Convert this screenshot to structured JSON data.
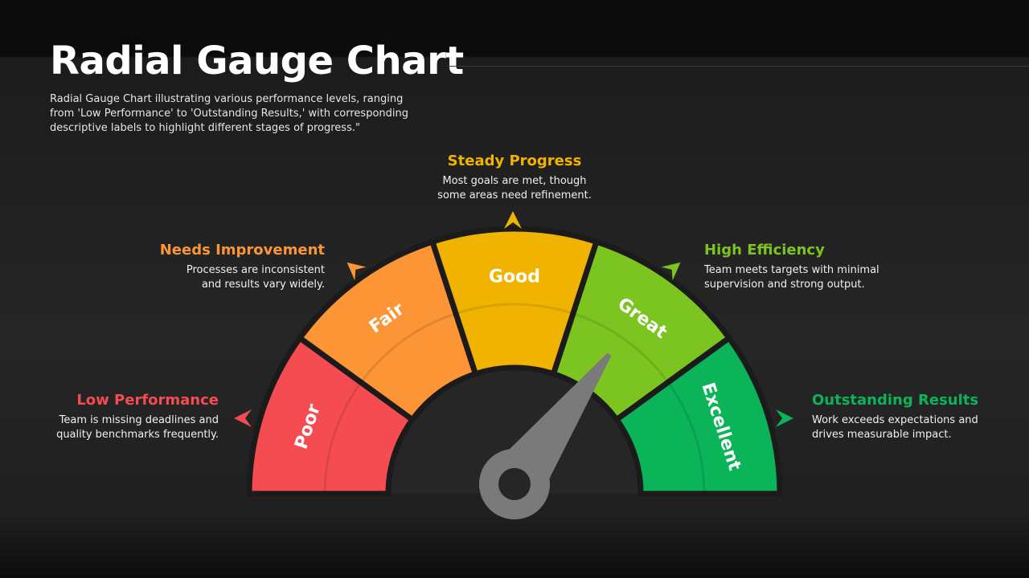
{
  "page": {
    "title": "Radial Gauge Chart",
    "subtitle": "Radial Gauge Chart illustrating various performance levels, ranging from 'Low Performance' to 'Outstanding Results,' with corresponding descriptive labels to highlight different stages of progress.\""
  },
  "chart_data": {
    "type": "gauge",
    "segments": [
      {
        "label": "Poor",
        "color": "#f44c51"
      },
      {
        "label": "Fair",
        "color": "#fb9536"
      },
      {
        "label": "Good",
        "color": "#f0b400"
      },
      {
        "label": "Great",
        "color": "#7cc41f"
      },
      {
        "label": "Excellent",
        "color": "#0bb458"
      }
    ],
    "needle": {
      "segment": "Great",
      "color": "#7a7a7a"
    }
  },
  "descriptions": [
    {
      "heading": "Low Performance",
      "text": "Team is missing deadlines and\nquality benchmarks frequently.",
      "color": "#f44c51"
    },
    {
      "heading": "Needs Improvement",
      "text": "Processes are inconsistent\nand results vary widely.",
      "color": "#fb9536"
    },
    {
      "heading": "Steady Progress",
      "text": "Most goals are met, though\nsome areas need refinement.",
      "color": "#f0b400"
    },
    {
      "heading": "High Efficiency",
      "text": "Team meets targets with minimal\nsupervision and strong output.",
      "color": "#7cc41f"
    },
    {
      "heading": "Outstanding Results",
      "text": "Work exceeds expectations and\ndrives measurable impact.",
      "color": "#0bb458"
    }
  ]
}
